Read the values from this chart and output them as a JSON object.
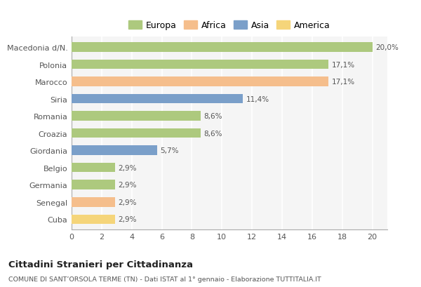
{
  "categories": [
    "Macedonia d/N.",
    "Polonia",
    "Marocco",
    "Siria",
    "Romania",
    "Croazia",
    "Giordania",
    "Belgio",
    "Germania",
    "Senegal",
    "Cuba"
  ],
  "values": [
    20.0,
    17.1,
    17.1,
    11.4,
    8.6,
    8.6,
    5.7,
    2.9,
    2.9,
    2.9,
    2.9
  ],
  "labels": [
    "20,0%",
    "17,1%",
    "17,1%",
    "11,4%",
    "8,6%",
    "8,6%",
    "5,7%",
    "2,9%",
    "2,9%",
    "2,9%",
    "2,9%"
  ],
  "bar_colors": [
    "#adc97e",
    "#adc97e",
    "#f5be8c",
    "#7a9fc9",
    "#adc97e",
    "#adc97e",
    "#7a9fc9",
    "#adc97e",
    "#adc97e",
    "#f5be8c",
    "#f5d57a"
  ],
  "legend_labels": [
    "Europa",
    "Africa",
    "Asia",
    "America"
  ],
  "legend_colors": [
    "#adc97e",
    "#f5be8c",
    "#7a9fc9",
    "#f5d57a"
  ],
  "title": "Cittadini Stranieri per Cittadinanza",
  "subtitle": "COMUNE DI SANT’ORSOLA TERME (TN) - Dati ISTAT al 1° gennaio - Elaborazione TUTTITALIA.IT",
  "xlim": [
    0,
    21
  ],
  "xticks": [
    0,
    2,
    4,
    6,
    8,
    10,
    12,
    14,
    16,
    18,
    20
  ],
  "background_color": "#ffffff",
  "plot_bg_color": "#f5f5f5",
  "grid_color": "#ffffff",
  "bar_height": 0.55
}
